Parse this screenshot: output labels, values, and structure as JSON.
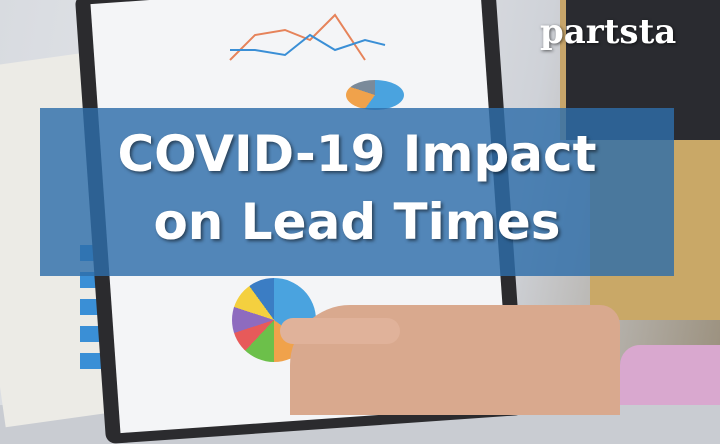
{
  "headline": {
    "line1": "COVID-19 Impact",
    "line2": "on Lead Times"
  },
  "logo": {
    "text": "partsta"
  },
  "colors": {
    "banner": "#2e6eaa",
    "text": "#ffffff"
  }
}
